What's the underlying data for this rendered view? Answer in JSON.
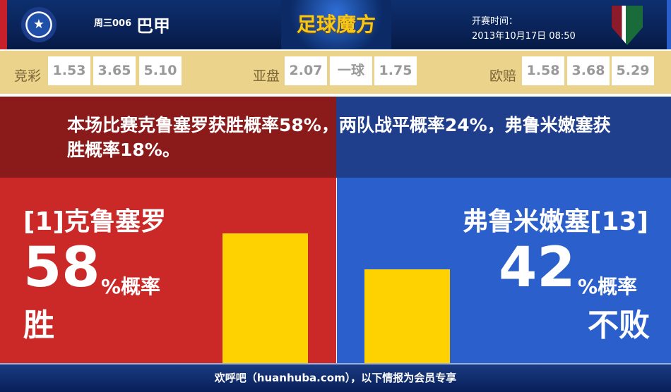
{
  "header": {
    "league_prefix": "周三006",
    "league": "巴甲",
    "brand": "足球魔方",
    "time_label": "开赛时间：",
    "time_value": "2013年10月17日 08:50",
    "home_logo": "cruzeiro-crest",
    "away_logo": "fluminense-crest"
  },
  "odds": {
    "jingcai": {
      "label": "竞彩",
      "values": [
        "1.53",
        "3.65",
        "5.10"
      ]
    },
    "yapan": {
      "label": "亚盘",
      "values": [
        "2.07",
        "一球",
        "1.75"
      ]
    },
    "oupei": {
      "label": "欧赔",
      "values": [
        "1.58",
        "3.68",
        "5.29"
      ]
    }
  },
  "summary": "本场比赛克鲁塞罗获胜概率58%，两队战平概率24%，弗鲁米嫩塞获胜概率18%。",
  "home": {
    "team": "[1]克鲁塞罗",
    "pct": "58",
    "pct_label": "%概率",
    "result": "胜",
    "bar_value": 58
  },
  "away": {
    "team": "弗鲁米嫩塞[13]",
    "pct": "42",
    "pct_label": "%概率",
    "result": "不败",
    "bar_value": 42
  },
  "footer": "欢呼吧（huanhuba.com），以下情报为会员专享",
  "colors": {
    "home": "#cb2828",
    "away": "#2b5fcb",
    "bar": "#fed200"
  }
}
